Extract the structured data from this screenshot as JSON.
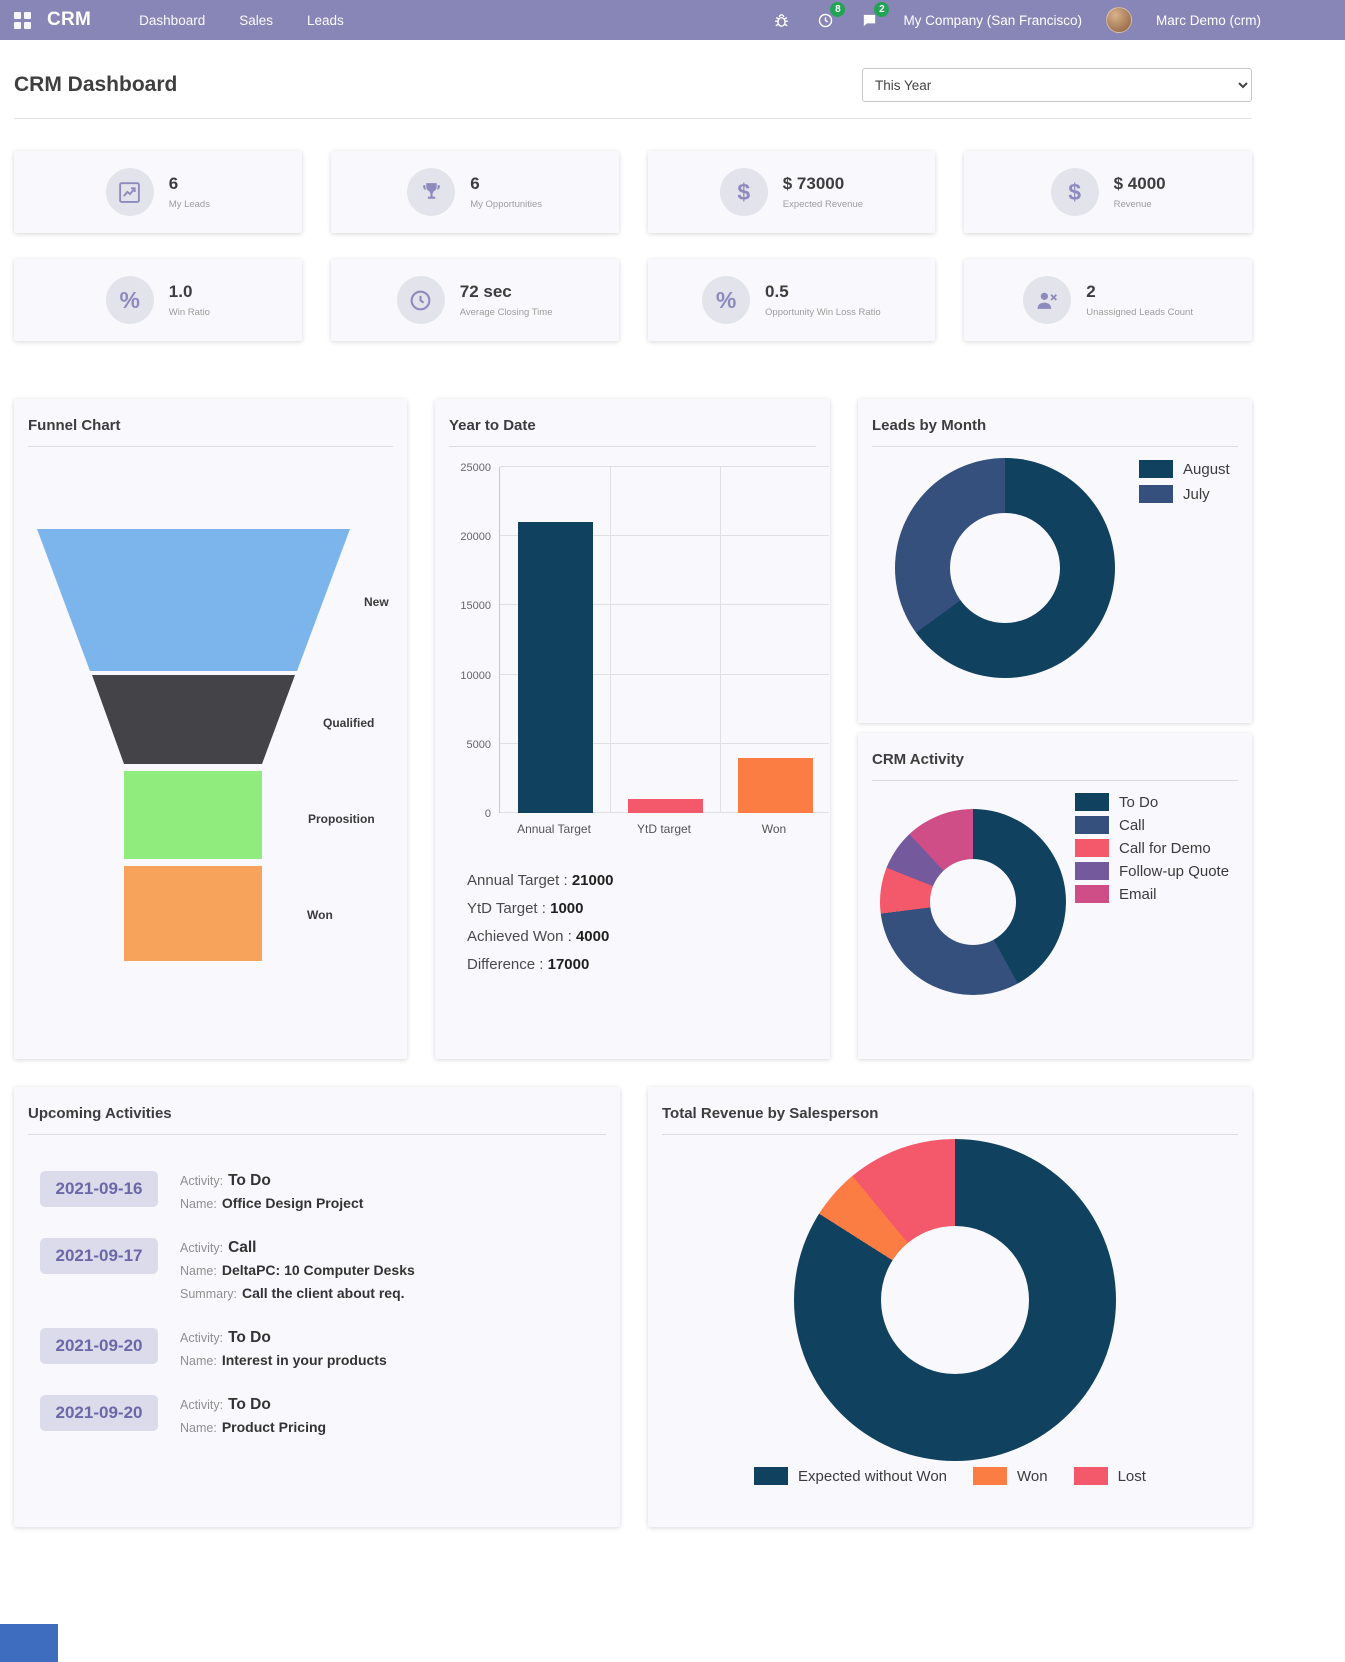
{
  "navbar": {
    "brand": "CRM",
    "menu": [
      {
        "label": "Dashboard"
      },
      {
        "label": "Sales"
      },
      {
        "label": "Leads"
      }
    ],
    "activity_badge": "8",
    "message_badge": "2",
    "company": "My Company (San Francisco)",
    "user": "Marc Demo (crm)"
  },
  "header": {
    "title": "CRM Dashboard",
    "filter_value": "This Year"
  },
  "kpis": [
    {
      "value": "6",
      "label": "My Leads",
      "icon": "line-chart-icon"
    },
    {
      "value": "6",
      "label": "My Opportunities",
      "icon": "trophy-icon"
    },
    {
      "value": "$ 73000",
      "label": "Expected Revenue",
      "icon": "dollar-icon"
    },
    {
      "value": "$ 4000",
      "label": "Revenue",
      "icon": "dollar-icon"
    },
    {
      "value": "1.0",
      "label": "Win Ratio",
      "icon": "percent-icon"
    },
    {
      "value": "72 sec",
      "label": "Average Closing Time",
      "icon": "clock-icon"
    },
    {
      "value": "0.5",
      "label": "Opportunity Win Loss Ratio",
      "icon": "percent-icon"
    },
    {
      "value": "2",
      "label": "Unassigned Leads Count",
      "icon": "user-slash-icon"
    }
  ],
  "ytd_summary": [
    {
      "label": "Annual Target :",
      "value": "21000"
    },
    {
      "label": "YtD Target :",
      "value": "1000"
    },
    {
      "label": "Achieved Won :",
      "value": "4000"
    },
    {
      "label": "Difference :",
      "value": "17000"
    }
  ],
  "labels": {
    "activity": "Activity:",
    "name": "Name:",
    "summary": "Summary:"
  },
  "activities": {
    "title": "Upcoming Activities",
    "items": [
      {
        "date": "2021-09-16",
        "activity": "To Do",
        "name": "Office Design Project"
      },
      {
        "date": "2021-09-17",
        "activity": "Call",
        "name": "DeltaPC: 10 Computer Desks",
        "summary": "Call the client about req."
      },
      {
        "date": "2021-09-20",
        "activity": "To Do",
        "name": "Interest in your products"
      },
      {
        "date": "2021-09-20",
        "activity": "To Do",
        "name": "Product Pricing"
      }
    ]
  },
  "chart_data": [
    {
      "id": "funnel",
      "type": "funnel",
      "title": "Funnel Chart",
      "stages": [
        "New",
        "Qualified",
        "Proposition",
        "Won"
      ],
      "colors": [
        "#7cb5ec",
        "#434348",
        "#90ed7d",
        "#f7a35c"
      ]
    },
    {
      "id": "year-to-date",
      "type": "bar",
      "title": "Year to Date",
      "categories": [
        "Annual Target",
        "YtD target",
        "Won"
      ],
      "values": [
        21000,
        1000,
        4000
      ],
      "colors": [
        "#10415e",
        "#f4596b",
        "#fb7d44"
      ],
      "ylim": [
        0,
        25000
      ],
      "yticks": [
        0,
        5000,
        10000,
        15000,
        20000,
        25000
      ],
      "grid": true,
      "legend_position": "none"
    },
    {
      "id": "leads-by-month",
      "type": "pie",
      "title": "Leads by Month",
      "labels": [
        "August",
        "July"
      ],
      "values_pct": [
        65,
        35
      ],
      "colors": [
        "#10415e",
        "#35507c"
      ],
      "donut": true,
      "legend_position": "top-right"
    },
    {
      "id": "crm-activity",
      "type": "pie",
      "title": "CRM Activity",
      "labels": [
        "To Do",
        "Call",
        "Call for Demo",
        "Follow-up Quote",
        "Email"
      ],
      "values_pct": [
        42,
        31,
        8,
        7,
        12
      ],
      "colors": [
        "#10415e",
        "#35507c",
        "#f4596b",
        "#745a9d",
        "#d04e88"
      ],
      "donut": true,
      "legend_position": "right"
    },
    {
      "id": "total-revenue-by-salesperson",
      "type": "pie",
      "title": "Total Revenue by Salesperson",
      "labels": [
        "Expected without Won",
        "Won",
        "Lost"
      ],
      "values_pct": [
        84,
        5,
        11
      ],
      "colors": [
        "#10415e",
        "#fb7d44",
        "#f4596b"
      ],
      "donut": true,
      "legend_position": "bottom"
    }
  ],
  "colors": {
    "navbar": "#8786b7",
    "badge_green": "#23a455",
    "card_bg": "#f9f9fd",
    "kpi_icon": "#8d8bbd",
    "date_pill_bg": "#dcdbeb",
    "date_pill_text": "#6b68a8",
    "corner_box": "#3e6dbf"
  }
}
